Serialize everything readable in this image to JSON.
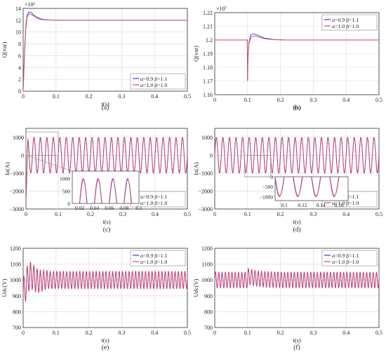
{
  "colors": {
    "series_a": "#3a3fb5",
    "series_b": "#d2466e",
    "axis": "#333333",
    "grid": "#d8d8d8"
  },
  "chart_data": [
    {
      "type": "line",
      "caption": "(a)",
      "xlabel": "t(s)",
      "ylabel": "Q(var)",
      "exponent": "×10⁶",
      "xlim": [
        0,
        0.5
      ],
      "ylim": [
        0,
        14
      ],
      "xticks": [
        0,
        0.1,
        0.2,
        0.3,
        0.4,
        0.5
      ],
      "xticklabels": [
        "0",
        "0.1",
        "0.2",
        "0.3",
        "0.4",
        "0.5"
      ],
      "yticks": [
        0,
        2,
        4,
        6,
        8,
        10,
        12,
        14
      ],
      "yticklabels": [
        "0",
        "2",
        "4",
        "6",
        "8",
        "10",
        "12",
        "14"
      ],
      "grid": true,
      "legend": "bottom-right",
      "series": [
        {
          "name": "α=0.9 β=1.1",
          "x": [
            0,
            0.004,
            0.008,
            0.012,
            0.016,
            0.02,
            0.025,
            0.03,
            0.04,
            0.05,
            0.06,
            0.08,
            0.1,
            0.15,
            0.2,
            0.3,
            0.4,
            0.5
          ],
          "values": [
            0,
            6.5,
            11.0,
            12.8,
            13.3,
            13.4,
            13.3,
            13.0,
            12.6,
            12.3,
            12.15,
            12.05,
            12.0,
            12.0,
            12.0,
            12.0,
            12.0,
            12.0
          ]
        },
        {
          "name": "α=1.0 β=1.0",
          "x": [
            0,
            0.004,
            0.008,
            0.012,
            0.016,
            0.02,
            0.025,
            0.03,
            0.04,
            0.05,
            0.06,
            0.08,
            0.1,
            0.15,
            0.2,
            0.3,
            0.4,
            0.5
          ],
          "values": [
            0,
            6.0,
            10.6,
            12.5,
            13.0,
            13.1,
            13.0,
            12.8,
            12.4,
            12.2,
            12.1,
            12.03,
            12.0,
            12.0,
            12.0,
            12.0,
            12.0,
            12.0
          ]
        }
      ]
    },
    {
      "type": "line",
      "caption": "(b)",
      "xlabel": "t(s)",
      "ylabel": "Q(var)",
      "exponent": "×10⁷",
      "xlim": [
        0,
        0.5
      ],
      "ylim": [
        1.16,
        1.22
      ],
      "xticks": [
        0,
        0.1,
        0.2,
        0.3,
        0.4,
        0.5
      ],
      "xticklabels": [
        "0",
        "0.1",
        "0.2",
        "0.3",
        "0.4",
        "0.5"
      ],
      "yticks": [
        1.16,
        1.17,
        1.18,
        1.19,
        1.2,
        1.21,
        1.22
      ],
      "yticklabels": [
        "1.16",
        "1.17",
        "1.18",
        "1.19",
        "1.2",
        "1.21",
        "1.22"
      ],
      "grid": true,
      "legend": "top-right",
      "series": [
        {
          "name": "α=0.9 β=1.1",
          "x": [
            0,
            0.099,
            0.1,
            0.101,
            0.104,
            0.11,
            0.12,
            0.13,
            0.15,
            0.18,
            0.22,
            0.3,
            0.4,
            0.5
          ],
          "values": [
            1.2,
            1.2,
            1.17,
            1.186,
            1.198,
            1.204,
            1.2045,
            1.2035,
            1.2015,
            1.2003,
            1.2,
            1.2,
            1.2,
            1.2
          ]
        },
        {
          "name": "α=1.0 β=1.0",
          "x": [
            0,
            0.099,
            0.1,
            0.101,
            0.104,
            0.11,
            0.12,
            0.13,
            0.15,
            0.18,
            0.22,
            0.3,
            0.4,
            0.5
          ],
          "values": [
            1.2,
            1.2,
            1.172,
            1.186,
            1.197,
            1.202,
            1.203,
            1.2025,
            1.201,
            1.2002,
            1.2,
            1.2,
            1.2,
            1.2
          ]
        }
      ]
    },
    {
      "type": "line",
      "caption": "(c)",
      "xlabel": "t(s)",
      "ylabel": "Ia(A)",
      "xlim": [
        0,
        0.5
      ],
      "ylim": [
        -3000,
        1500
      ],
      "xticks": [
        0,
        0.1,
        0.2,
        0.3,
        0.4,
        0.5
      ],
      "xticklabels": [
        "0",
        "0.1",
        "0.2",
        "0.3",
        "0.4",
        "0.5"
      ],
      "yticks": [
        -3000,
        -2000,
        -1000,
        0,
        1000
      ],
      "yticklabels": [
        "−3000",
        "−2000",
        "−1000",
        "0",
        "1000"
      ],
      "grid": true,
      "legend": "bottom-right",
      "waveform": {
        "kind": "sine",
        "frequency_hz": 50,
        "amplitude": 1000,
        "offset": 0,
        "start_dip": -2500
      },
      "series": [
        {
          "name": "α=0.9 β=1.1"
        },
        {
          "name": "α=1.0 β=1.0"
        }
      ],
      "inset": {
        "xlim": [
          0.01,
          0.1
        ],
        "ylim": [
          0,
          1300
        ],
        "xticks": [
          0.02,
          0.04,
          0.06,
          0.08,
          0.1
        ],
        "xticklabels": [
          "0.02",
          "0.04",
          "0.06",
          "0.08",
          "0.1"
        ],
        "yticks": [
          0,
          500,
          1000
        ],
        "yticklabels": [
          "0",
          "500",
          "1000"
        ]
      }
    },
    {
      "type": "line",
      "caption": "(d)",
      "xlabel": "t(s)",
      "ylabel": "Ia(A)",
      "xlim": [
        0,
        0.5
      ],
      "ylim": [
        -3000,
        1500
      ],
      "xticks": [
        0,
        0.1,
        0.2,
        0.3,
        0.4,
        0.5
      ],
      "xticklabels": [
        "0",
        "0.1",
        "0.2",
        "0.3",
        "0.4",
        "0.5"
      ],
      "yticks": [
        -3000,
        -2000,
        -1000,
        0,
        1000
      ],
      "yticklabels": [
        "−3000",
        "−2000",
        "−1000",
        "0",
        "1000"
      ],
      "grid": true,
      "legend": "bottom-right",
      "waveform": {
        "kind": "sine",
        "frequency_hz": 50,
        "amplitude": 1000,
        "offset": 0
      },
      "series": [
        {
          "name": "α=0.9 β=1.1"
        },
        {
          "name": "α=1.0 β=1.0"
        }
      ],
      "inset": {
        "xlim": [
          0.09,
          0.17
        ],
        "ylim": [
          -1200,
          0
        ],
        "xticks": [
          0.1,
          0.12,
          0.14,
          0.16
        ],
        "xticklabels": [
          "0.1",
          "0.12",
          "0.14",
          "0.16"
        ],
        "yticks": [
          -1000,
          -500,
          0
        ],
        "yticklabels": [
          "−1000",
          "−500",
          "0"
        ]
      }
    },
    {
      "type": "line",
      "caption": "(e)",
      "xlabel": "t(s)",
      "ylabel": "Udc(V)",
      "xlim": [
        0,
        0.5
      ],
      "ylim": [
        700,
        1200
      ],
      "xticks": [
        0,
        0.1,
        0.2,
        0.3,
        0.4,
        0.5
      ],
      "xticklabels": [
        "0",
        "0.1",
        "0.2",
        "0.3",
        "0.4",
        "0.5"
      ],
      "yticks": [
        700,
        800,
        900,
        1000,
        1100,
        1200
      ],
      "yticklabels": [
        "700",
        "800",
        "900",
        "1000",
        "1100",
        "1200"
      ],
      "grid": true,
      "legend": "top-right",
      "waveform": {
        "kind": "ripple",
        "frequency_hz": 100,
        "amplitude": 55,
        "offset": 1000,
        "start_transient": true
      },
      "series": [
        {
          "name": "α=0.9 β=1.1"
        },
        {
          "name": "α=1.0 β=1.0"
        }
      ]
    },
    {
      "type": "line",
      "caption": "(f)",
      "xlabel": "t(s)",
      "ylabel": "Udc(V)",
      "xlim": [
        0,
        0.5
      ],
      "ylim": [
        700,
        1200
      ],
      "xticks": [
        0,
        0.1,
        0.2,
        0.3,
        0.4,
        0.5
      ],
      "xticklabels": [
        "0",
        "0.1",
        "0.2",
        "0.3",
        "0.4",
        "0.5"
      ],
      "yticks": [
        700,
        800,
        900,
        1000,
        1100,
        1200
      ],
      "yticklabels": [
        "700",
        "800",
        "900",
        "1000",
        "1100",
        "1200"
      ],
      "grid": true,
      "legend": "top-right",
      "waveform": {
        "kind": "ripple",
        "frequency_hz": 100,
        "amplitude": 50,
        "offset": 1000,
        "step_at": 0.1
      },
      "series": [
        {
          "name": "α=0.9 β=1.1"
        },
        {
          "name": "α=1.0 β=1.0"
        }
      ]
    }
  ]
}
